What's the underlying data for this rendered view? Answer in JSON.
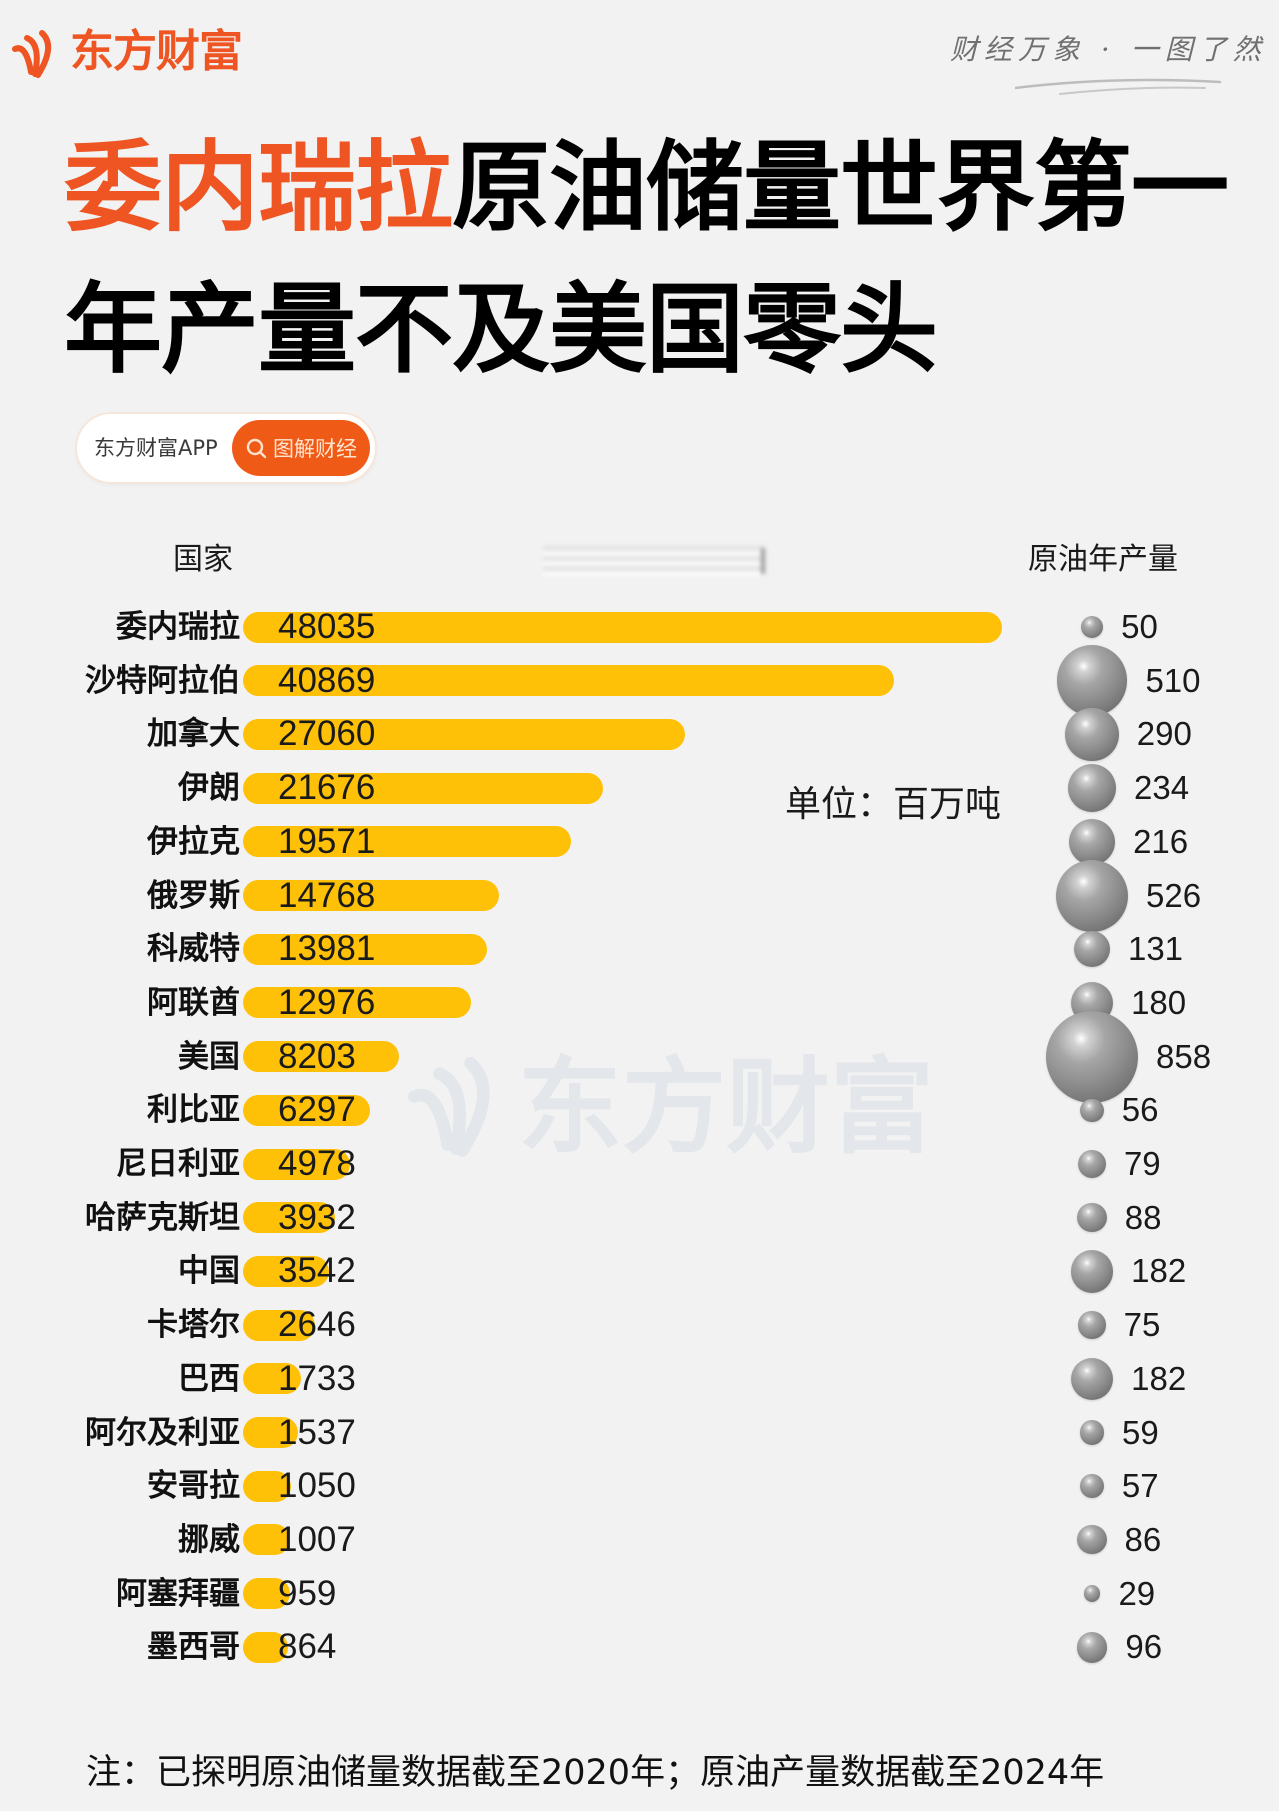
{
  "brand": {
    "name": "东方财富",
    "logo_icon": "flame-stripes-logo-icon",
    "tagline": "财经万象 · 一图了然"
  },
  "headline": {
    "highlight": "委内瑞拉",
    "line1_rest": "原油储量世界第一",
    "line2": "年产量不及美国零头"
  },
  "search_pill": {
    "app_label": "东方财富APP",
    "button_label": "图解财经",
    "button_icon": "search-icon"
  },
  "table_headers": {
    "country": "国家",
    "production": "原油年产量"
  },
  "unit_label": "单位：百万吨",
  "watermark": "东方财富",
  "footnote": "注：已探明原油储量数据截至2020年；原油产量数据截至2024年",
  "colors": {
    "accent": "#EE5522",
    "bar": "#FFC107",
    "bubble": "#8B8B8B",
    "background": "#F2F2F2"
  },
  "chart_data": {
    "type": "bar",
    "title": "委内瑞拉原油储量世界第一 年产量不及美国零头",
    "orientation": "horizontal",
    "unit": "百万吨",
    "xlabel": "",
    "ylabel": "国家",
    "grid": false,
    "legend": "none",
    "categories": [
      "委内瑞拉",
      "沙特阿拉伯",
      "加拿大",
      "伊朗",
      "伊拉克",
      "俄罗斯",
      "科威特",
      "阿联酋",
      "美国",
      "利比亚",
      "尼日利亚",
      "哈萨克斯坦",
      "中国",
      "卡塔尔",
      "巴西",
      "阿尔及利亚",
      "安哥拉",
      "挪威",
      "阿塞拜疆",
      "墨西哥"
    ],
    "series": [
      {
        "name": "原油储量",
        "type": "bar",
        "values": [
          48035,
          40869,
          27060,
          21676,
          19571,
          14768,
          13981,
          12976,
          8203,
          6297,
          4978,
          3932,
          3542,
          2646,
          1733,
          1537,
          1050,
          1007,
          959,
          864
        ]
      },
      {
        "name": "原油年产量",
        "type": "bubble",
        "values": [
          50,
          510,
          290,
          234,
          216,
          526,
          131,
          180,
          858,
          56,
          79,
          88,
          182,
          75,
          182,
          59,
          57,
          86,
          29,
          96
        ]
      }
    ],
    "notes": [
      "已探明原油储量数据截至2020年",
      "原油产量数据截至2024年"
    ]
  }
}
